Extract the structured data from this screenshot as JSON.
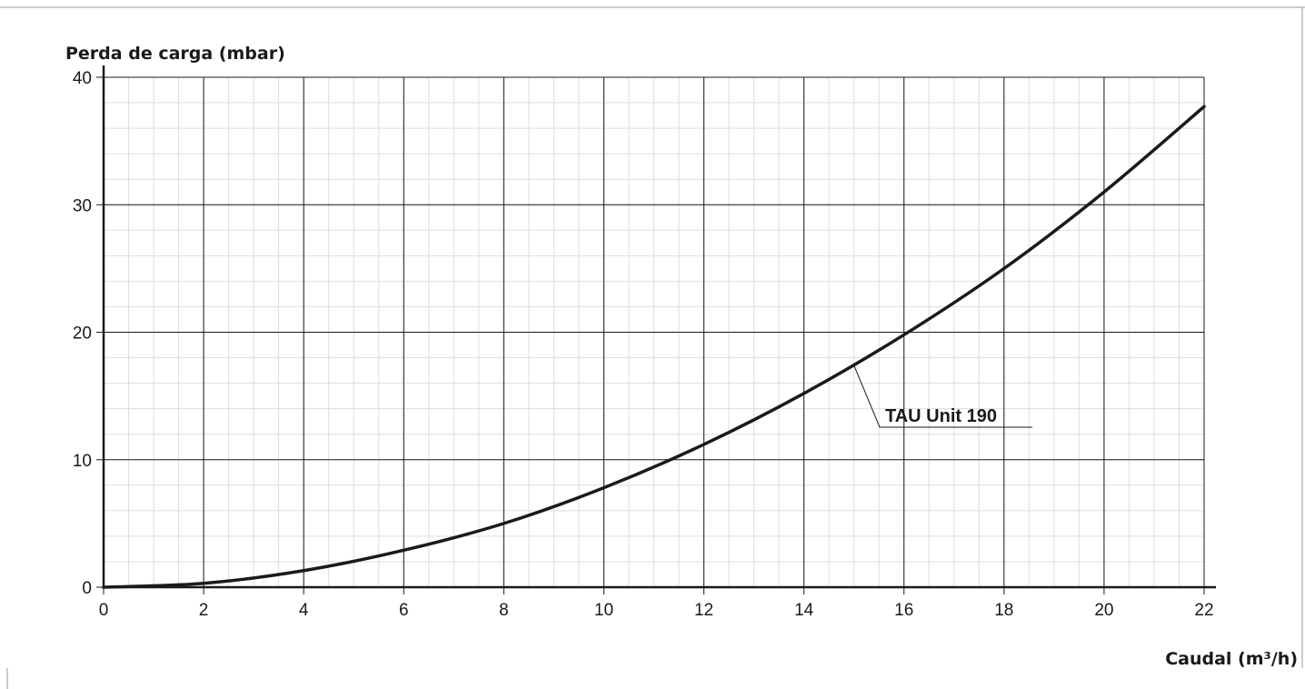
{
  "chart_data": {
    "type": "line",
    "ylabel": "Perda de carga (mbar)",
    "xlabel": "Caudal (m³/h)",
    "xlim": [
      0,
      22
    ],
    "ylim": [
      0,
      40
    ],
    "x_ticks": [
      0,
      2,
      4,
      6,
      8,
      10,
      12,
      14,
      16,
      18,
      20,
      22
    ],
    "y_ticks": [
      0,
      10,
      20,
      30,
      40
    ],
    "grid": "major and minor",
    "series": [
      {
        "name": "TAU Unit 190",
        "color": "#1a1a1a",
        "x": [
          0,
          2,
          4,
          6,
          8,
          10,
          12,
          14,
          16,
          18,
          20,
          22
        ],
        "values": [
          0,
          0.3,
          1.3,
          2.9,
          5.0,
          7.8,
          11.2,
          15.2,
          19.8,
          25.0,
          31.0,
          37.7
        ]
      }
    ],
    "annotations": [
      {
        "text": "TAU Unit 190",
        "series": "TAU Unit 190",
        "x": 15.0,
        "y": 17.4
      }
    ]
  }
}
